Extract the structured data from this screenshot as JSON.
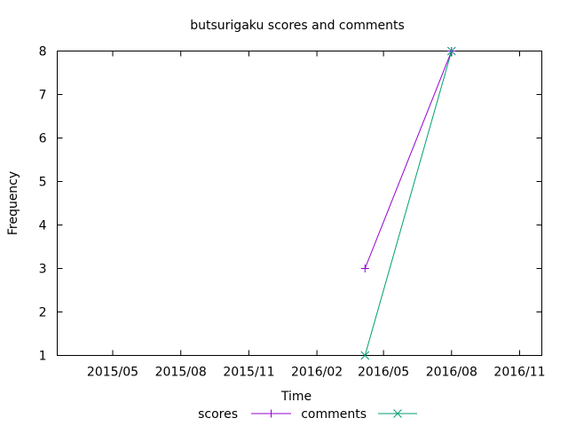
{
  "chart_data": {
    "type": "line",
    "title": "butsurigaku scores and comments",
    "xlabel": "Time",
    "ylabel": "Frequency",
    "x_is_date": true,
    "xlim": [
      "2015-02-15",
      "2016-12-01"
    ],
    "ylim": [
      1,
      8
    ],
    "x_ticks": [
      {
        "date": "2015-05-01",
        "label": "2015/05"
      },
      {
        "date": "2015-08-01",
        "label": "2015/08"
      },
      {
        "date": "2015-11-01",
        "label": "2015/11"
      },
      {
        "date": "2016-02-01",
        "label": "2016/02"
      },
      {
        "date": "2016-05-01",
        "label": "2016/05"
      },
      {
        "date": "2016-08-01",
        "label": "2016/08"
      },
      {
        "date": "2016-11-01",
        "label": "2016/11"
      }
    ],
    "y_ticks": [
      1,
      2,
      3,
      4,
      5,
      6,
      7,
      8
    ],
    "grid": false,
    "legend_position": "bottom-center",
    "series": [
      {
        "name": "scores",
        "color": "#9400d3",
        "marker": "plus",
        "x": [
          "2016-04-06",
          "2016-08-01"
        ],
        "y": [
          3,
          8
        ]
      },
      {
        "name": "comments",
        "color": "#009e73",
        "marker": "cross",
        "x": [
          "2016-04-06",
          "2016-08-01"
        ],
        "y": [
          1,
          8
        ]
      }
    ]
  }
}
